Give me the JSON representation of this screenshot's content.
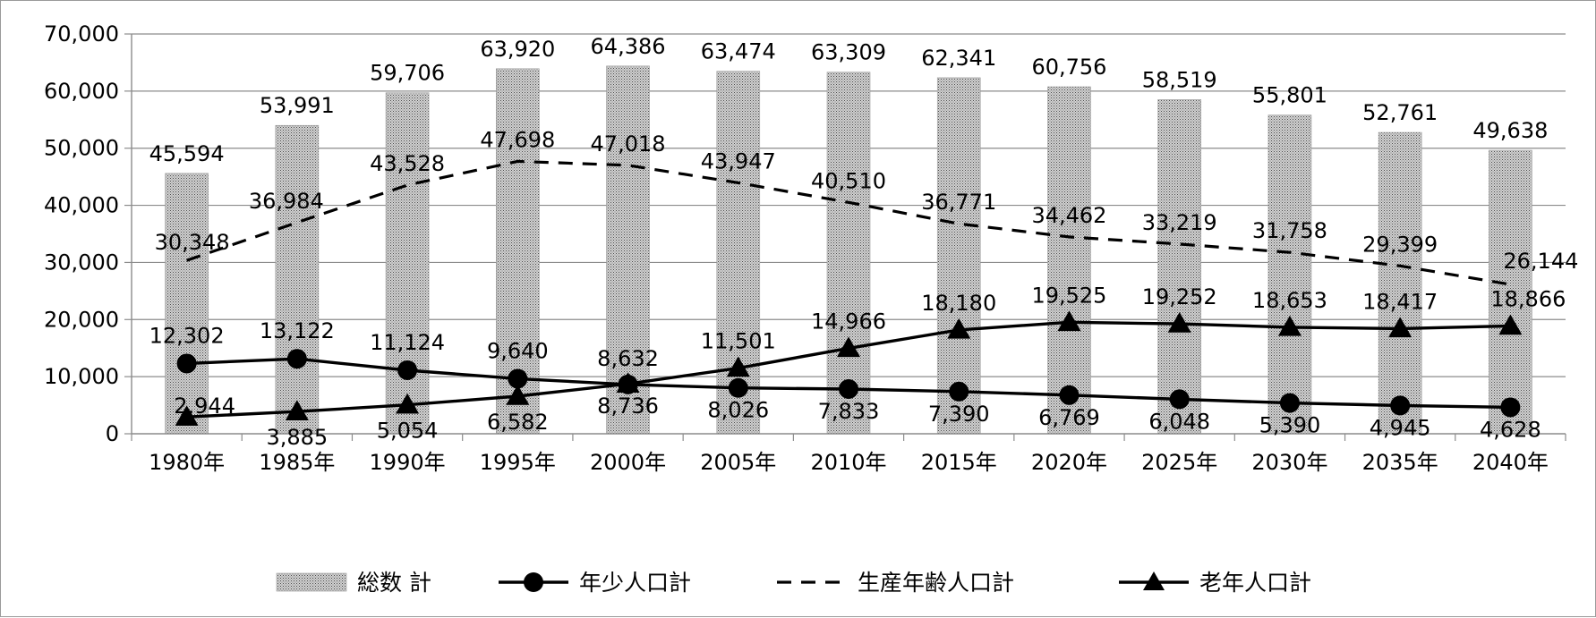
{
  "chart_data": {
    "type": "bar",
    "title": "",
    "xlabel": "",
    "ylabel": "",
    "ylim": [
      0,
      70000
    ],
    "ytick_step": 10000,
    "ytick_labels": [
      "0",
      "10,000",
      "20,000",
      "30,000",
      "40,000",
      "50,000",
      "60,000",
      "70,000"
    ],
    "grid": true,
    "legend_position": "bottom",
    "categories": [
      "1980年",
      "1985年",
      "1990年",
      "1995年",
      "2000年",
      "2005年",
      "2010年",
      "2015年",
      "2020年",
      "2025年",
      "2030年",
      "2035年",
      "2040年"
    ],
    "series": [
      {
        "name": "総数 計",
        "kind": "bar",
        "style": "dotted-fill",
        "values": [
          45594,
          53991,
          59706,
          63920,
          64386,
          63474,
          63309,
          62341,
          60756,
          58519,
          55801,
          52761,
          49638
        ],
        "labels": [
          "45,594",
          "53,991",
          "59,706",
          "63,920",
          "64,386",
          "63,474",
          "63,309",
          "62,341",
          "60,756",
          "58,519",
          "55,801",
          "52,761",
          "49,638"
        ]
      },
      {
        "name": "年少人口計",
        "kind": "line",
        "style": "solid-circle",
        "values": [
          12302,
          13122,
          11124,
          9640,
          8632,
          8026,
          7833,
          7390,
          6769,
          6048,
          5390,
          4945,
          4628
        ],
        "labels": [
          "12,302",
          "13,122",
          "11,124",
          "9,640",
          "8,632",
          "8,026",
          "7,833",
          "7,390",
          "6,769",
          "6,048",
          "5,390",
          "4,945",
          "4,628"
        ]
      },
      {
        "name": "生産年齢人口計",
        "kind": "line",
        "style": "dashed",
        "values": [
          30348,
          36984,
          43528,
          47698,
          47018,
          43947,
          40510,
          36771,
          34462,
          33219,
          31758,
          29399,
          26144
        ],
        "labels": [
          "30,348",
          "36,984",
          "43,528",
          "47,698",
          "47,018",
          "43,947",
          "40,510",
          "36,771",
          "34,462",
          "33,219",
          "31,758",
          "29,399",
          "26,144"
        ]
      },
      {
        "name": "老年人口計",
        "kind": "line",
        "style": "solid-triangle",
        "values": [
          2944,
          3885,
          5054,
          6582,
          8736,
          11501,
          14966,
          18180,
          19525,
          19252,
          18653,
          18417,
          18866
        ],
        "labels": [
          "2,944",
          "3,885",
          "5,054",
          "6,582",
          "8,736",
          "11,501",
          "14,966",
          "18,180",
          "19,525",
          "19,252",
          "18,653",
          "18,417",
          "18,866"
        ]
      }
    ],
    "legend": [
      {
        "label": "総数 計",
        "symbol": "dotted-box"
      },
      {
        "label": "年少人口計",
        "symbol": "line-circle"
      },
      {
        "label": "生産年齢人口計",
        "symbol": "dashed-line"
      },
      {
        "label": "老年人口計",
        "symbol": "line-triangle"
      }
    ],
    "colors": {
      "line": "#000000",
      "grid": "#8c8c8c",
      "axis": "#8c8c8c",
      "bar_fill": "#d6d6d6",
      "bar_dot": "#555555"
    }
  }
}
